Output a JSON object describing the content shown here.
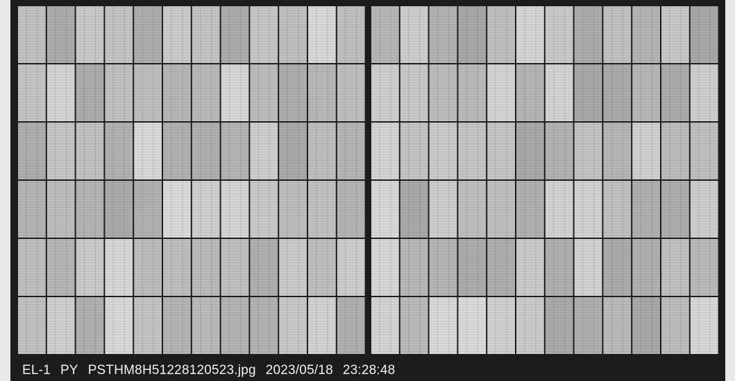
{
  "caption": {
    "station": "EL-1",
    "tag": "PY",
    "filename": "PSTHM8H51228120523.jpg",
    "date": "2023/05/18",
    "time": "23:28:48"
  }
}
